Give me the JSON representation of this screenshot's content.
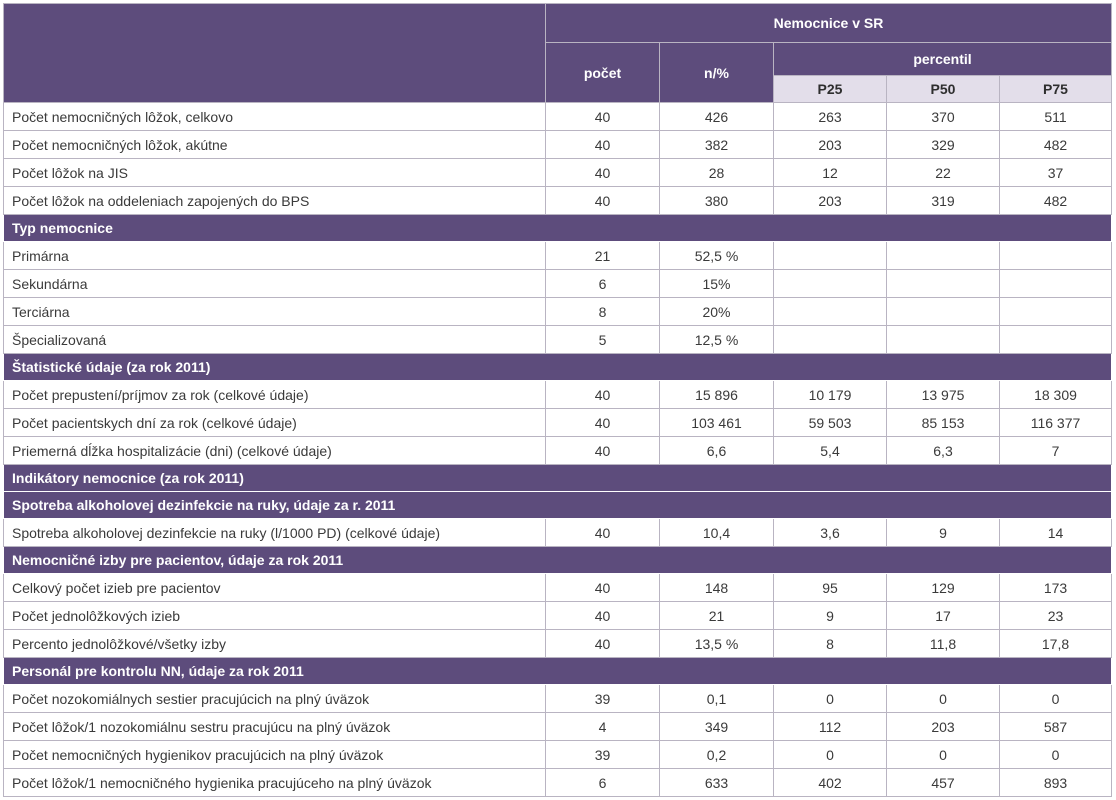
{
  "header": {
    "group": "Nemocnice v SR",
    "count": "počet",
    "n_pct": "n/%",
    "percentil": "percentil",
    "p25": "P25",
    "p50": "P50",
    "p75": "P75"
  },
  "rows": [
    {
      "type": "data",
      "label": "Počet nemocničných lôžok, celkovo",
      "v": [
        "40",
        "426",
        "263",
        "370",
        "511"
      ]
    },
    {
      "type": "data",
      "label": "Počet nemocničných lôžok, akútne",
      "v": [
        "40",
        "382",
        "203",
        "329",
        "482"
      ]
    },
    {
      "type": "data",
      "label": "Počet lôžok na JIS",
      "v": [
        "40",
        "28",
        "12",
        "22",
        "37"
      ]
    },
    {
      "type": "data",
      "label": "Počet lôžok na oddeleniach zapojených do BPS",
      "v": [
        "40",
        "380",
        "203",
        "319",
        "482"
      ]
    },
    {
      "type": "section",
      "label": "Typ nemocnice"
    },
    {
      "type": "data",
      "label": "Primárna",
      "v": [
        "21",
        "52,5 %",
        "",
        "",
        ""
      ]
    },
    {
      "type": "data",
      "label": "Sekundárna",
      "v": [
        "6",
        "15%",
        "",
        "",
        ""
      ]
    },
    {
      "type": "data",
      "label": "Terciárna",
      "v": [
        "8",
        "20%",
        "",
        "",
        ""
      ]
    },
    {
      "type": "data",
      "label": "Špecializovaná",
      "v": [
        "5",
        "12,5 %",
        "",
        "",
        ""
      ]
    },
    {
      "type": "section",
      "label": "Štatistické údaje (za rok 2011)"
    },
    {
      "type": "data",
      "label": "Počet prepustení/príjmov za rok (celkové údaje)",
      "v": [
        "40",
        "15 896",
        "10 179",
        "13 975",
        "18 309"
      ]
    },
    {
      "type": "data",
      "label": "Počet pacientskych dní za rok (celkové údaje)",
      "v": [
        "40",
        "103 461",
        "59 503",
        "85 153",
        "116 377"
      ]
    },
    {
      "type": "data",
      "label": "Priemerná dĺžka hospitalizácie (dni) (celkové údaje)",
      "v": [
        "40",
        "6,6",
        "5,4",
        "6,3",
        "7"
      ]
    },
    {
      "type": "section",
      "label": "Indikátory nemocnice (za rok 2011)"
    },
    {
      "type": "section",
      "label": "Spotreba alkoholovej dezinfekcie na ruky, údaje za r. 2011"
    },
    {
      "type": "data",
      "label": "Spotreba alkoholovej dezinfekcie na ruky (l/1000 PD) (celkové údaje)",
      "v": [
        "40",
        "10,4",
        "3,6",
        "9",
        "14"
      ]
    },
    {
      "type": "section",
      "label": "Nemocničné izby pre pacientov, údaje za rok 2011"
    },
    {
      "type": "data",
      "label": "Celkový počet izieb pre pacientov",
      "v": [
        "40",
        "148",
        "95",
        "129",
        "173"
      ]
    },
    {
      "type": "data",
      "label": "Počet jednolôžkových izieb",
      "v": [
        "40",
        "21",
        "9",
        "17",
        "23"
      ]
    },
    {
      "type": "data",
      "label": "Percento jednolôžkové/všetky izby",
      "v": [
        "40",
        "13,5 %",
        "8",
        "11,8",
        "17,8"
      ]
    },
    {
      "type": "section",
      "label": "Personál pre kontrolu NN, údaje za rok 2011"
    },
    {
      "type": "data",
      "label": "Počet nozokomiálnych sestier pracujúcich na plný úväzok",
      "v": [
        "39",
        "0,1",
        "0",
        "0",
        "0"
      ]
    },
    {
      "type": "data",
      "label": "Počet lôžok/1 nozokomiálnu sestru pracujúcu na plný úväzok",
      "v": [
        "4",
        "349",
        "112",
        "203",
        "587"
      ]
    },
    {
      "type": "data",
      "label": "Počet nemocničných hygienikov pracujúcich na plný úväzok",
      "v": [
        "39",
        "0,2",
        "0",
        "0",
        "0"
      ]
    },
    {
      "type": "data",
      "label": "Počet lôžok/1 nemocničného hygienika pracujúceho na plný úväzok",
      "v": [
        "6",
        "633",
        "402",
        "457",
        "893"
      ]
    }
  ]
}
